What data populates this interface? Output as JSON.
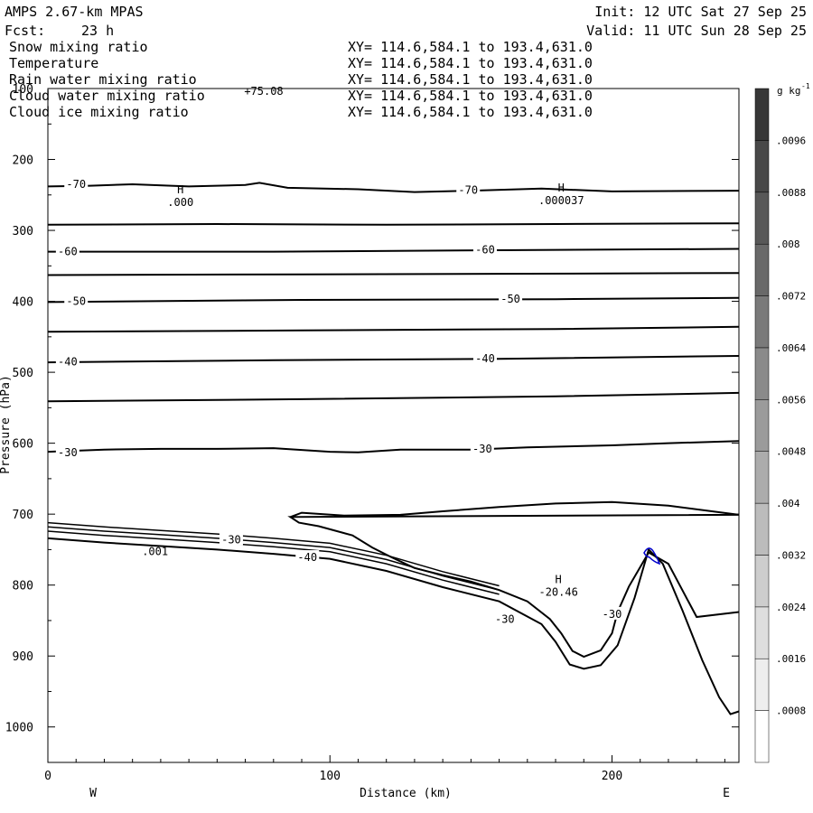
{
  "header": {
    "model": "AMPS 2.67-km MPAS",
    "fcst_label": "Fcst:",
    "fcst_value": "23 h",
    "init": "Init: 12 UTC Sat 27 Sep 25",
    "valid": "Valid: 11 UTC Sun 28 Sep 25"
  },
  "legend": [
    {
      "name": "Snow mixing ratio",
      "xy": "XY= 114.6,584.1 to 193.4,631.0",
      "color": "#000000"
    },
    {
      "name": "Temperature",
      "xy": "XY= 114.6,584.1 to 193.4,631.0",
      "color": "#000000"
    },
    {
      "name": "Rain water mixing ratio",
      "xy": "XY= 114.6,584.1 to 193.4,631.0",
      "color": "#ff0000"
    },
    {
      "name": "Cloud water mixing ratio",
      "xy": "XY= 114.6,584.1 to 193.4,631.0",
      "color": "#0000cc"
    },
    {
      "name": "Cloud ice mixing ratio",
      "xy": "XY= 114.6,584.1 to 193.4,631.0",
      "color": "#000000"
    }
  ],
  "chart_data": {
    "type": "contour-cross-section",
    "title": "AMPS 2.67-km MPAS",
    "xlabel": "Distance (km)",
    "ylabel": "Pressure (hPa)",
    "xlim": [
      0,
      245
    ],
    "ylim": [
      1050,
      100
    ],
    "x_ticks": [
      0,
      100,
      200
    ],
    "y_ticks": [
      100,
      200,
      300,
      400,
      500,
      600,
      700,
      800,
      900,
      1000
    ],
    "direction_left": "W",
    "direction_right": "E",
    "top_value_label": "+75.08",
    "colorbar": {
      "unit_label": "g kg",
      "unit_exp": "-1",
      "ticks": [
        ".0096",
        ".0088",
        ".008",
        ".0072",
        ".0064",
        ".0056",
        ".0048",
        ".004",
        ".0032",
        ".0024",
        ".0016",
        ".0008"
      ],
      "min": 0,
      "max": 0.0104
    },
    "isotherm_labels": [
      {
        "text": "-70",
        "x": 10,
        "p": 235
      },
      {
        "text": "-70",
        "x": 149,
        "p": 243
      },
      {
        "text": "-60",
        "x": 7,
        "p": 330
      },
      {
        "text": "-60",
        "x": 155,
        "p": 327
      },
      {
        "text": "-50",
        "x": 10,
        "p": 400
      },
      {
        "text": "-50",
        "x": 164,
        "p": 397
      },
      {
        "text": "-40",
        "x": 7,
        "p": 485
      },
      {
        "text": "-40",
        "x": 155,
        "p": 481
      },
      {
        "text": "-30",
        "x": 7,
        "p": 613
      },
      {
        "text": "-30",
        "x": 154,
        "p": 608
      },
      {
        "text": "-30",
        "x": 65,
        "p": 736
      },
      {
        "text": "-40",
        "x": 92,
        "p": 761
      },
      {
        "text": "-30",
        "x": 162,
        "p": 848
      },
      {
        "text": "-30",
        "x": 200,
        "p": 841
      }
    ],
    "highs": [
      {
        "label": "H",
        "value": ".000",
        "x": 47,
        "p": 248
      },
      {
        "label": "H",
        "value": ".000037",
        "x": 182,
        "p": 245
      },
      {
        "label": "H",
        "value": "-20.46",
        "x": 181,
        "p": 797
      }
    ],
    "extra_labels": [
      {
        "text": ".001",
        "x": 38,
        "p": 758
      }
    ],
    "isotherms": [
      {
        "level": -70,
        "points": [
          [
            0,
            238
          ],
          [
            15,
            237
          ],
          [
            30,
            235
          ],
          [
            50,
            238
          ],
          [
            70,
            236
          ],
          [
            75,
            233
          ],
          [
            85,
            240
          ],
          [
            110,
            242
          ],
          [
            130,
            246
          ],
          [
            150,
            244
          ],
          [
            175,
            241
          ],
          [
            200,
            245
          ],
          [
            245,
            244
          ]
        ]
      },
      {
        "level": -65,
        "points": [
          [
            0,
            292
          ],
          [
            60,
            291
          ],
          [
            120,
            292
          ],
          [
            180,
            291
          ],
          [
            245,
            290
          ]
        ]
      },
      {
        "level": -60,
        "points": [
          [
            0,
            330
          ],
          [
            80,
            330
          ],
          [
            160,
            328
          ],
          [
            245,
            326
          ]
        ]
      },
      {
        "level": -55,
        "points": [
          [
            0,
            363
          ],
          [
            90,
            362
          ],
          [
            170,
            361
          ],
          [
            245,
            360
          ]
        ]
      },
      {
        "level": -50,
        "points": [
          [
            0,
            401
          ],
          [
            90,
            398
          ],
          [
            180,
            397
          ],
          [
            245,
            395
          ]
        ]
      },
      {
        "level": -45,
        "points": [
          [
            0,
            443
          ],
          [
            90,
            441
          ],
          [
            180,
            439
          ],
          [
            245,
            436
          ]
        ]
      },
      {
        "level": -40,
        "points": [
          [
            0,
            486
          ],
          [
            80,
            483
          ],
          [
            160,
            481
          ],
          [
            245,
            477
          ]
        ]
      },
      {
        "level": -35,
        "points": [
          [
            0,
            541
          ],
          [
            90,
            538
          ],
          [
            180,
            534
          ],
          [
            245,
            529
          ]
        ]
      },
      {
        "level": -30,
        "points": [
          [
            0,
            612
          ],
          [
            20,
            609
          ],
          [
            40,
            608
          ],
          [
            60,
            608
          ],
          [
            80,
            607
          ],
          [
            100,
            612
          ],
          [
            110,
            613
          ],
          [
            125,
            609
          ],
          [
            150,
            609
          ],
          [
            170,
            606
          ],
          [
            200,
            603
          ],
          [
            220,
            600
          ],
          [
            245,
            597
          ]
        ]
      },
      {
        "level": -25,
        "points": [
          [
            86,
            704
          ],
          [
            90,
            698
          ],
          [
            105,
            702
          ],
          [
            125,
            701
          ],
          [
            140,
            696
          ],
          [
            160,
            690
          ],
          [
            180,
            685
          ],
          [
            200,
            683
          ],
          [
            220,
            688
          ],
          [
            245,
            701
          ],
          [
            86,
            704
          ],
          [
            89,
            712
          ],
          [
            96,
            717
          ],
          [
            108,
            730
          ],
          [
            115,
            747
          ],
          [
            122,
            761
          ],
          [
            130,
            776
          ],
          [
            140,
            786
          ],
          [
            150,
            795
          ],
          [
            160,
            807
          ],
          [
            170,
            823
          ],
          [
            178,
            848
          ],
          [
            182,
            868
          ],
          [
            186,
            893
          ],
          [
            190,
            901
          ],
          [
            196,
            892
          ],
          [
            200,
            868
          ],
          [
            202,
            838
          ],
          [
            206,
            802
          ],
          [
            213,
            754
          ],
          [
            220,
            770
          ],
          [
            230,
            845
          ],
          [
            245,
            838
          ]
        ]
      }
    ],
    "terrain": [
      [
        0,
        734
      ],
      [
        20,
        740
      ],
      [
        40,
        745
      ],
      [
        60,
        750
      ],
      [
        80,
        756
      ],
      [
        100,
        763
      ],
      [
        120,
        780
      ],
      [
        140,
        803
      ],
      [
        160,
        823
      ],
      [
        175,
        855
      ],
      [
        180,
        880
      ],
      [
        185,
        912
      ],
      [
        190,
        918
      ],
      [
        196,
        913
      ],
      [
        202,
        885
      ],
      [
        208,
        818
      ],
      [
        213,
        750
      ],
      [
        218,
        770
      ],
      [
        225,
        836
      ],
      [
        232,
        906
      ],
      [
        238,
        958
      ],
      [
        242,
        982
      ],
      [
        245,
        978
      ]
    ]
  }
}
